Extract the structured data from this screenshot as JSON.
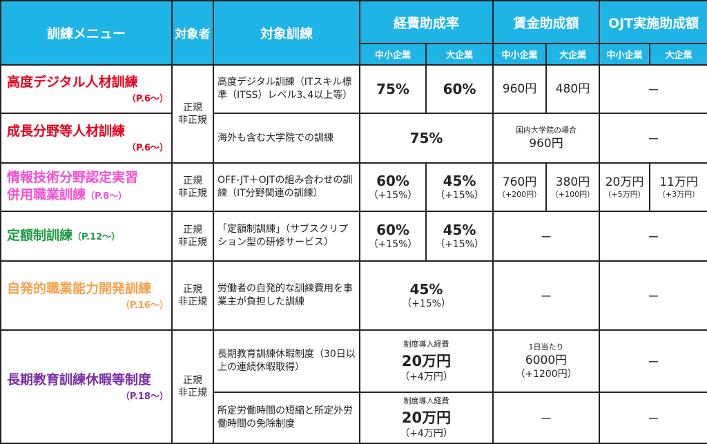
{
  "header": {
    "menu": "訓練メニュー",
    "target": "対象者",
    "course": "対象訓練",
    "expense": "経費助成率",
    "wage": "賃金助成額",
    "ojt": "OJT実施助成額",
    "sme": "中小企業",
    "large": "大企業"
  },
  "rows": {
    "r1": {
      "name": "高度デジタル人材訓練",
      "page": "（P.6～）",
      "target_a": "正規",
      "target_b": "非正規",
      "desc": "高度デジタル訓練（ITスキル標準（ITSS）レベル3､4以上等）",
      "exp_sme": "75%",
      "exp_large": "60%",
      "wage_sme": "960円",
      "wage_large": "480円",
      "ojt": "ー"
    },
    "r2": {
      "name": "成長分野等人材訓練",
      "page": "（P.6～）",
      "desc": "海外も含む大学院での訓練",
      "exp": "75%",
      "wage_note": "国内大学院の場合",
      "wage": "960円",
      "ojt": "ー"
    },
    "r3": {
      "name_line1": "情報技術分野認定実習",
      "name_line2": "併用職業訓練",
      "page": "（P.8～）",
      "target_a": "正規",
      "target_b": "非正規",
      "desc": "OFF-JT＋OJTの組み合わせの訓練（IT分野関連の訓練）",
      "exp_sme": "60%",
      "exp_sme_add": "（+15%）",
      "exp_large": "45%",
      "exp_large_add": "（+15%）",
      "wage_sme": "760円",
      "wage_sme_add": "（+200円）",
      "wage_large": "380円",
      "wage_large_add": "（+100円）",
      "ojt_sme": "20万円",
      "ojt_sme_add": "（+5万円）",
      "ojt_large": "11万円",
      "ojt_large_add": "（+3万円）"
    },
    "r4": {
      "name": "定額制訓練",
      "page": "（P.12～）",
      "target_a": "正規",
      "target_b": "非正規",
      "desc": "「定額制訓練」（サブスクリプション型の研修サービス）",
      "exp_sme": "60%",
      "exp_sme_add": "（+15%）",
      "exp_large": "45%",
      "exp_large_add": "（+15%）",
      "wage": "ー",
      "ojt": "ー"
    },
    "r5": {
      "name": "自発的職業能力開発訓練",
      "page": "（P.16～）",
      "target_a": "正規",
      "target_b": "非正規",
      "desc": "労働者の自発的な訓練費用を事業主が負担した訓練",
      "exp": "45%",
      "exp_add": "（+15%）",
      "wage": "ー",
      "ojt": "ー"
    },
    "r6": {
      "name": "長期教育訓練休暇等制度",
      "page": "（P.18～）",
      "target_a": "正規",
      "target_b": "非正規",
      "desc": "長期教育訓練休暇制度（30日以上の連続休暇取得）",
      "exp_note": "制度導入経費",
      "exp": "20万円",
      "exp_add": "（+4万円）",
      "wage_note": "1日当たり",
      "wage": "6000円",
      "wage_add": "（+1200円）",
      "ojt": "ー"
    },
    "r7": {
      "desc": "所定労働時間の短縮と所定外労働時間の免除制度",
      "exp_note": "制度導入経費",
      "exp": "20万円",
      "exp_add": "（+4万円）",
      "wage": "ー",
      "ojt": "ー"
    }
  },
  "colors": {
    "header_bg": "#1eb4e6",
    "r1": "#e8001c",
    "r2": "#e8001c",
    "r3": "#f54fd0",
    "r4": "#1f9a45",
    "r5": "#f5a04a",
    "r6": "#7a2ea8"
  }
}
